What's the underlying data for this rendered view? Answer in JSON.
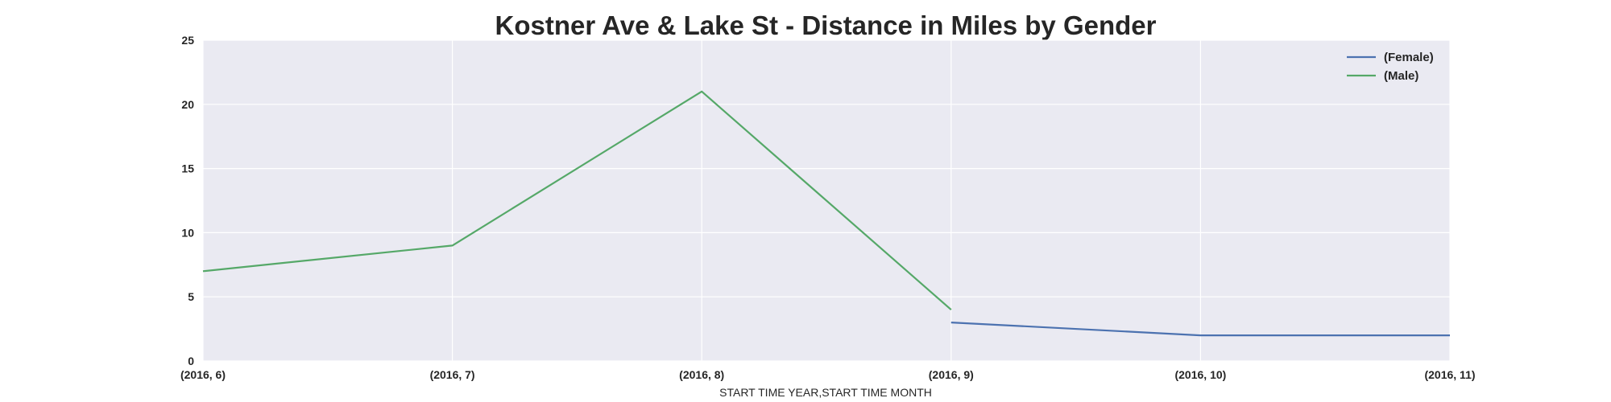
{
  "chart_data": {
    "type": "line",
    "title": "Kostner Ave & Lake St - Distance in Miles by Gender",
    "xlabel": "START TIME YEAR,START TIME MONTH",
    "ylabel": "",
    "categories": [
      "(2016, 6)",
      "(2016, 7)",
      "(2016, 8)",
      "(2016, 9)",
      "(2016, 10)",
      "(2016, 11)"
    ],
    "ylim": [
      0,
      25
    ],
    "yticks": [
      "0",
      "5",
      "10",
      "15",
      "20",
      "25"
    ],
    "grid": true,
    "legend_position": "top-right",
    "series": [
      {
        "name": "(Female)",
        "color": "#4c72b0",
        "values": [
          null,
          null,
          null,
          3,
          2,
          2
        ]
      },
      {
        "name": "(Male)",
        "color": "#55a868",
        "values": [
          7,
          9,
          21,
          4,
          null,
          null
        ]
      }
    ]
  },
  "style": {
    "plot_background": "#eaeaf2",
    "grid_color": "#ffffff",
    "text_color": "#262626"
  }
}
